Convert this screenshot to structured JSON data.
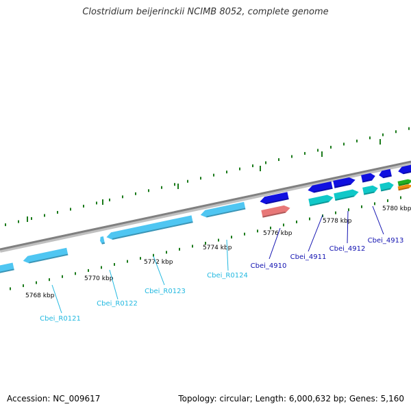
{
  "title": "Clostridium beijerinckii NCIMB 8052, complete genome",
  "footer": {
    "accession": "Accession: NC_009617",
    "summary": "Topology: circular; Length: 6,000,632 bp; Genes: 5,160"
  },
  "colors": {
    "backbone": "#808080",
    "tick": "#1a7a1a",
    "rna_gene": "#4fc6f2",
    "protein_gene": "#1010e0",
    "cds_product": "#10c8c8",
    "pseudo": "#e87878",
    "rna_label": "#20b8e0",
    "protein_label": "#1010b0",
    "extra_green": "#22b022",
    "extra_orange": "#f08c10"
  },
  "scale_labels": [
    "5768 kbp",
    "5770 kbp",
    "5772 kbp",
    "5774 kbp",
    "5776 kbp",
    "5778 kbp",
    "5780 kbp"
  ],
  "genes": [
    {
      "id": "Cbei_R0121",
      "kind": "rna"
    },
    {
      "id": "Cbei_R0122",
      "kind": "rna"
    },
    {
      "id": "Cbei_R0123",
      "kind": "rna"
    },
    {
      "id": "Cbei_R0124",
      "kind": "rna"
    },
    {
      "id": "Cbei_4910",
      "kind": "protein"
    },
    {
      "id": "Cbei_4911",
      "kind": "protein"
    },
    {
      "id": "Cbei_4912",
      "kind": "protein"
    },
    {
      "id": "Cbei_4913",
      "kind": "protein"
    }
  ]
}
